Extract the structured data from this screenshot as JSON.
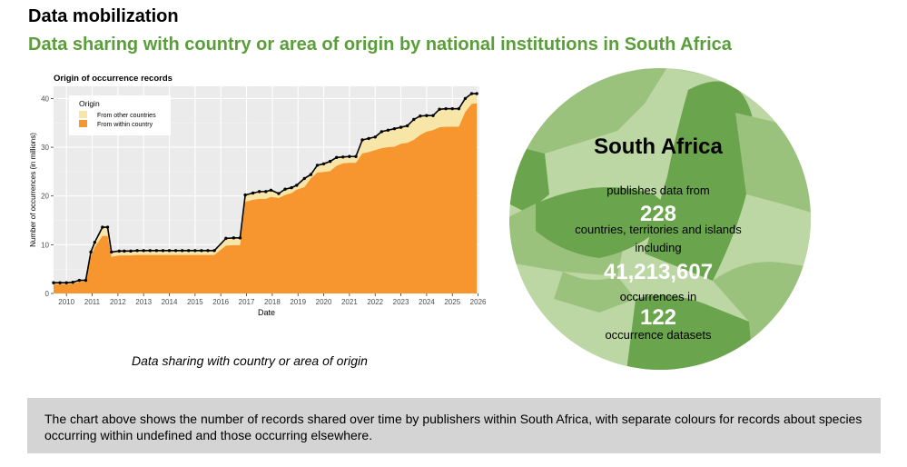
{
  "page": {
    "title": "Data mobilization",
    "subtitle": "Data sharing with country or area of origin by national institutions in South Africa",
    "caption": "Data sharing with country or area of origin",
    "note": "The chart above shows the number of records shared over time by publishers within South Africa, with separate colours for records about species occurring within undefined and those occurring elsewhere."
  },
  "summary": {
    "country": "South Africa",
    "line1": "publishes data from",
    "countries_count": "228",
    "line2": "countries, territories and islands",
    "line3": "including",
    "occurrences_count": "41,213,607",
    "line4": "occurrences in",
    "datasets_count": "122",
    "line5": "occurrence datasets"
  },
  "colors": {
    "title": "#000000",
    "subtitle": "#5a9e3a",
    "within_country": "#f7952f",
    "other_countries": "#f8e6a8",
    "plot_background": "#ebebeb",
    "circle_light": "#bcd6a4",
    "circle_mid": "#9bc27c",
    "circle_dark": "#6aa44c",
    "note_background": "#d4d4d4"
  },
  "chart_data": {
    "type": "area",
    "title": "Origin of occurrence records",
    "xlabel": "Date",
    "ylabel": "Number of occurrences (in millions)",
    "xlim": [
      2009.5,
      2026.05
    ],
    "ylim": [
      0,
      42.5
    ],
    "xticks": [
      2010,
      2011,
      2012,
      2013,
      2014,
      2015,
      2016,
      2017,
      2018,
      2019,
      2020,
      2021,
      2022,
      2023,
      2024,
      2025,
      2026
    ],
    "yticks": [
      0,
      10,
      20,
      30,
      40
    ],
    "grid": true,
    "legend": {
      "title": "Origin",
      "position": "top-left"
    },
    "x": [
      2009.5,
      2009.75,
      2010.0,
      2010.25,
      2010.5,
      2010.75,
      2010.95,
      2011.1,
      2011.4,
      2011.6,
      2011.75,
      2012.05,
      2012.25,
      2012.5,
      2012.75,
      2013.0,
      2013.25,
      2013.5,
      2013.75,
      2014.0,
      2014.25,
      2014.5,
      2014.75,
      2015.0,
      2015.25,
      2015.5,
      2015.75,
      2016.2,
      2016.5,
      2016.75,
      2016.95,
      2017.25,
      2017.5,
      2017.75,
      2017.95,
      2018.25,
      2018.5,
      2018.75,
      2018.95,
      2019.25,
      2019.5,
      2019.75,
      2020.0,
      2020.25,
      2020.5,
      2020.75,
      2021.0,
      2021.25,
      2021.5,
      2021.75,
      2022.0,
      2022.25,
      2022.5,
      2022.75,
      2023.0,
      2023.25,
      2023.5,
      2023.75,
      2024.0,
      2024.25,
      2024.5,
      2024.75,
      2025.0,
      2025.25,
      2025.5,
      2025.75,
      2025.95
    ],
    "series": [
      {
        "name": "From within country",
        "values": [
          1.9,
          1.9,
          1.9,
          2.0,
          2.4,
          2.4,
          7.5,
          9.5,
          11.8,
          11.8,
          7.5,
          7.8,
          7.8,
          7.8,
          7.9,
          7.9,
          7.9,
          7.9,
          7.9,
          7.9,
          7.9,
          7.9,
          7.9,
          7.9,
          7.9,
          7.9,
          7.9,
          9.8,
          9.9,
          9.9,
          18.8,
          19.2,
          19.4,
          19.4,
          19.8,
          19.6,
          20.2,
          20.6,
          21.3,
          21.8,
          23.6,
          24.8,
          24.9,
          25.1,
          26.2,
          26.7,
          26.8,
          26.8,
          28.7,
          29.0,
          29.4,
          29.8,
          30.0,
          30.1,
          30.7,
          30.9,
          31.5,
          32.5,
          33.2,
          33.5,
          34.1,
          34.2,
          34.2,
          34.2,
          37.2,
          38.9,
          39.0
        ]
      },
      {
        "name": "From other countries",
        "values": [
          2.2,
          2.2,
          2.2,
          2.3,
          2.7,
          2.7,
          8.5,
          10.5,
          13.6,
          13.6,
          8.5,
          8.7,
          8.7,
          8.7,
          8.8,
          8.8,
          8.8,
          8.8,
          8.8,
          8.8,
          8.8,
          8.8,
          8.8,
          8.8,
          8.8,
          8.8,
          8.8,
          11.3,
          11.4,
          11.4,
          20.2,
          20.6,
          20.9,
          20.9,
          21.2,
          20.5,
          21.4,
          21.7,
          22.2,
          23.6,
          24.4,
          26.3,
          26.6,
          27.1,
          27.9,
          28.0,
          28.1,
          28.1,
          31.5,
          31.8,
          32.1,
          33.2,
          33.5,
          33.8,
          34.1,
          34.4,
          35.7,
          36.4,
          36.5,
          36.5,
          37.8,
          37.9,
          37.9,
          37.9,
          40.0,
          41.0,
          41.0
        ]
      }
    ]
  }
}
